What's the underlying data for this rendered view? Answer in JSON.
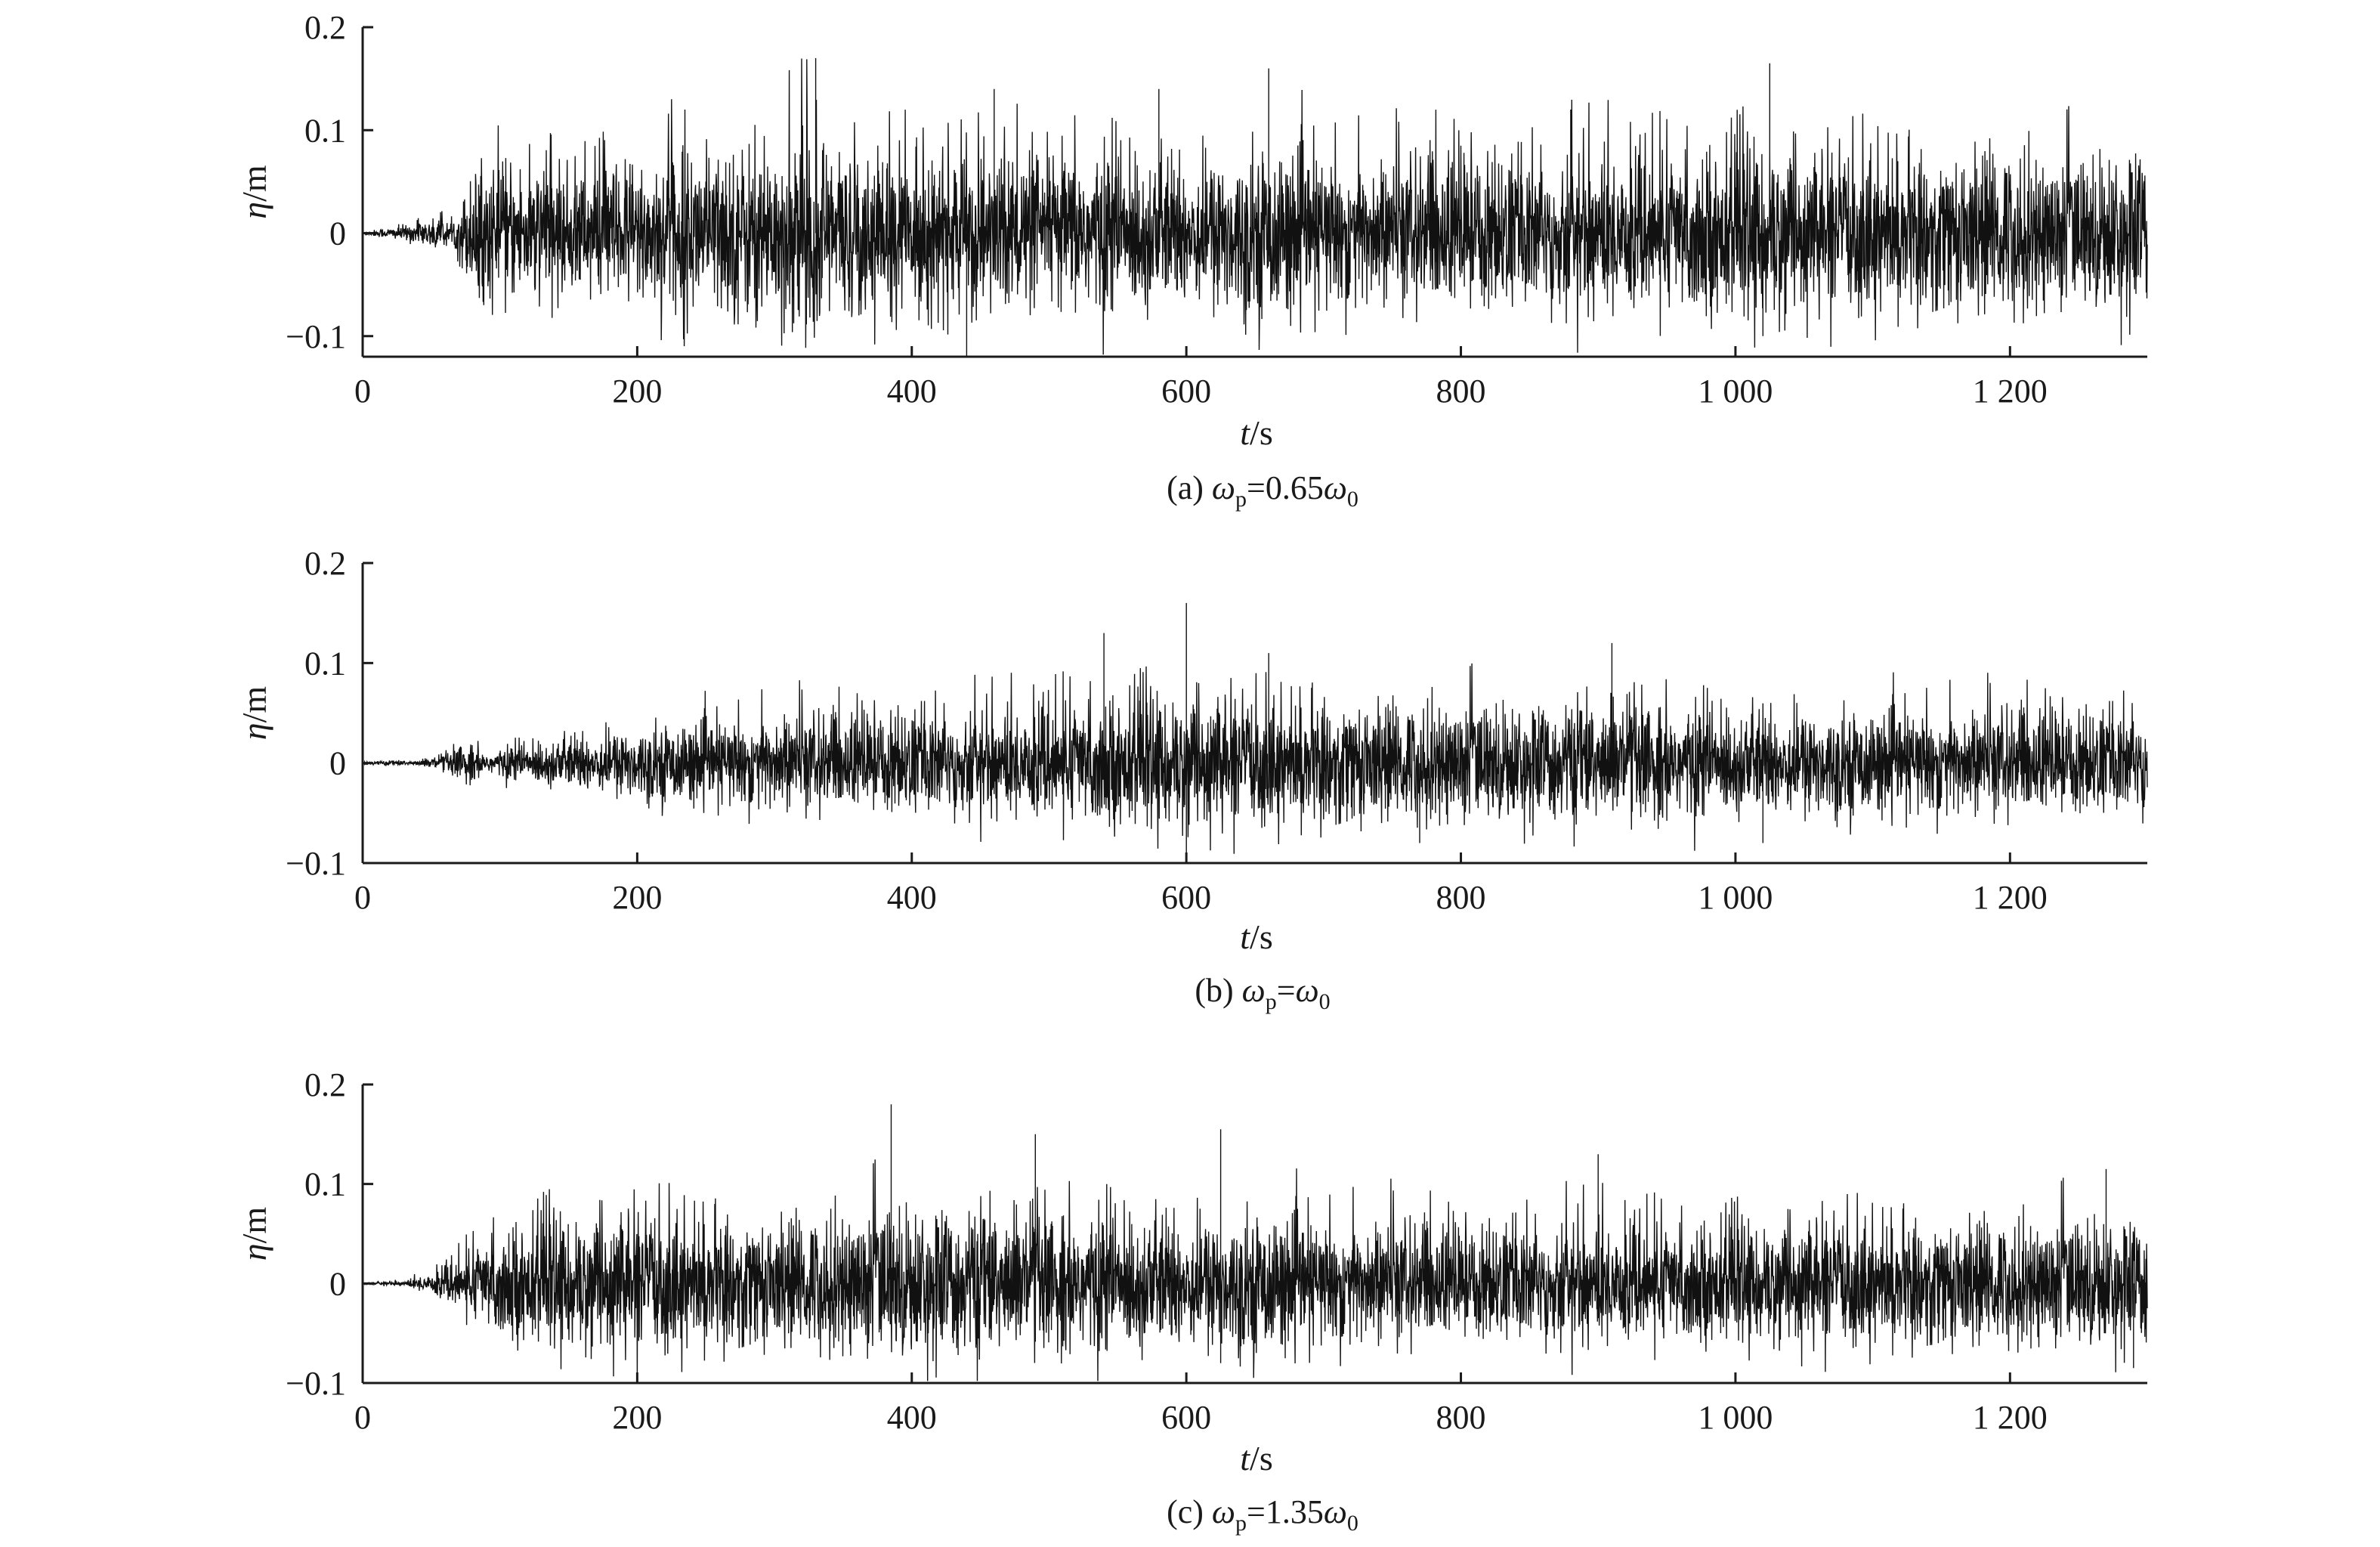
{
  "chart_data": [
    {
      "type": "line",
      "panel": "(a)",
      "caption_parts": {
        "prefix": "(a) ",
        "omega": "ω",
        "sub_p": "p",
        "mid": "=0.65",
        "omega2": "ω",
        "sub_0": "0"
      },
      "xlabel_var": "t",
      "xlabel_unit": "/s",
      "ylabel_var": "η",
      "ylabel_unit": "/m",
      "xlim": [
        0,
        1300
      ],
      "ylim": [
        -0.12,
        0.2
      ],
      "xticks": [
        0,
        200,
        400,
        600,
        800,
        1000,
        1200
      ],
      "xtick_labels": [
        "0",
        "200",
        "400",
        "600",
        "800",
        "1 000",
        "1 200"
      ],
      "yticks": [
        0.2,
        0.1,
        0,
        -0.1
      ],
      "ytick_labels": [
        "0.2",
        "0.1",
        "0",
        "−0.1"
      ],
      "series": [
        {
          "envelope_x": [
            0,
            20,
            40,
            55,
            65,
            75,
            85,
            100,
            120,
            150,
            200,
            250,
            300,
            330,
            350,
            400,
            450,
            500,
            550,
            600,
            650,
            700,
            750,
            800,
            850,
            900,
            950,
            1000,
            1030,
            1050,
            1100,
            1150,
            1200,
            1250,
            1300
          ],
          "envelope_amp": [
            0.002,
            0.006,
            0.012,
            0.02,
            0.01,
            0.05,
            0.075,
            0.07,
            0.08,
            0.07,
            0.085,
            0.09,
            0.1,
            0.12,
            0.09,
            0.085,
            0.09,
            0.085,
            0.09,
            0.08,
            0.09,
            0.085,
            0.08,
            0.09,
            0.085,
            0.09,
            0.085,
            0.09,
            0.1,
            0.085,
            0.09,
            0.085,
            0.09,
            0.085,
            0.09
          ],
          "peaks": [
            [
              330,
              0.17
            ],
            [
              440,
              -0.12
            ],
            [
              660,
              0.16
            ],
            [
              1025,
              0.165
            ],
            [
              1020,
              -0.1
            ],
            [
              460,
              0.14
            ],
            [
              580,
              0.14
            ],
            [
              880,
              0.12
            ]
          ]
        }
      ]
    },
    {
      "type": "line",
      "panel": "(b)",
      "caption_parts": {
        "prefix": "(b) ",
        "omega": "ω",
        "sub_p": "p",
        "mid": "=",
        "omega2": "ω",
        "sub_0": "0"
      },
      "xlabel_var": "t",
      "xlabel_unit": "/s",
      "ylabel_var": "η",
      "ylabel_unit": "/m",
      "xlim": [
        0,
        1300
      ],
      "ylim": [
        -0.1,
        0.2
      ],
      "xticks": [
        0,
        200,
        400,
        600,
        800,
        1000,
        1200
      ],
      "xtick_labels": [
        "0",
        "200",
        "400",
        "600",
        "800",
        "1 000",
        "1 200"
      ],
      "yticks": [
        0.2,
        0.1,
        0,
        -0.1
      ],
      "ytick_labels": [
        "0.2",
        "0.1",
        "0",
        "−0.1"
      ],
      "series": [
        {
          "envelope_x": [
            0,
            40,
            60,
            75,
            90,
            110,
            150,
            200,
            250,
            300,
            350,
            400,
            450,
            500,
            550,
            600,
            650,
            700,
            750,
            800,
            850,
            900,
            950,
            1000,
            1050,
            1100,
            1150,
            1200,
            1250,
            1300
          ],
          "envelope_amp": [
            0.002,
            0.003,
            0.01,
            0.025,
            0.012,
            0.02,
            0.03,
            0.04,
            0.045,
            0.055,
            0.055,
            0.06,
            0.06,
            0.065,
            0.07,
            0.075,
            0.07,
            0.07,
            0.065,
            0.07,
            0.065,
            0.07,
            0.065,
            0.06,
            0.06,
            0.055,
            0.06,
            0.06,
            0.06,
            0.06
          ],
          "peaks": [
            [
              600,
              0.16
            ],
            [
              540,
              0.13
            ],
            [
              600,
              -0.1
            ],
            [
              910,
              0.12
            ],
            [
              770,
              -0.08
            ],
            [
              1020,
              -0.08
            ],
            [
              660,
              0.11
            ]
          ]
        }
      ]
    },
    {
      "type": "line",
      "panel": "(c)",
      "caption_parts": {
        "prefix": "(c) ",
        "omega": "ω",
        "sub_p": "p",
        "mid": "=1.35",
        "omega2": "ω",
        "sub_0": "0"
      },
      "xlabel_var": "t",
      "xlabel_unit": "/s",
      "ylabel_var": "η",
      "ylabel_unit": "/m",
      "xlim": [
        0,
        1300
      ],
      "ylim": [
        -0.1,
        0.2
      ],
      "xticks": [
        0,
        200,
        400,
        600,
        800,
        1000,
        1200
      ],
      "xtick_labels": [
        "0",
        "200",
        "400",
        "600",
        "800",
        "1 000",
        "1 200"
      ],
      "yticks": [
        0.2,
        0.1,
        0,
        -0.1
      ],
      "ytick_labels": [
        "0.2",
        "0.1",
        "0",
        "−0.1"
      ],
      "series": [
        {
          "envelope_x": [
            0,
            30,
            50,
            70,
            100,
            150,
            200,
            250,
            300,
            350,
            385,
            400,
            450,
            500,
            550,
            600,
            650,
            700,
            750,
            800,
            850,
            900,
            950,
            1000,
            1050,
            1100,
            1150,
            1200,
            1250,
            1300
          ],
          "envelope_amp": [
            0.001,
            0.003,
            0.012,
            0.03,
            0.06,
            0.075,
            0.08,
            0.075,
            0.07,
            0.08,
            0.09,
            0.085,
            0.085,
            0.08,
            0.08,
            0.075,
            0.075,
            0.07,
            0.07,
            0.065,
            0.07,
            0.07,
            0.065,
            0.065,
            0.07,
            0.07,
            0.07,
            0.07,
            0.075,
            0.07
          ],
          "peaks": [
            [
              385,
              0.18
            ],
            [
              625,
              0.155
            ],
            [
              490,
              0.15
            ],
            [
              900,
              0.13
            ],
            [
              625,
              -0.08
            ],
            [
              1270,
              0.115
            ],
            [
              1290,
              -0.085
            ]
          ]
        }
      ]
    }
  ]
}
